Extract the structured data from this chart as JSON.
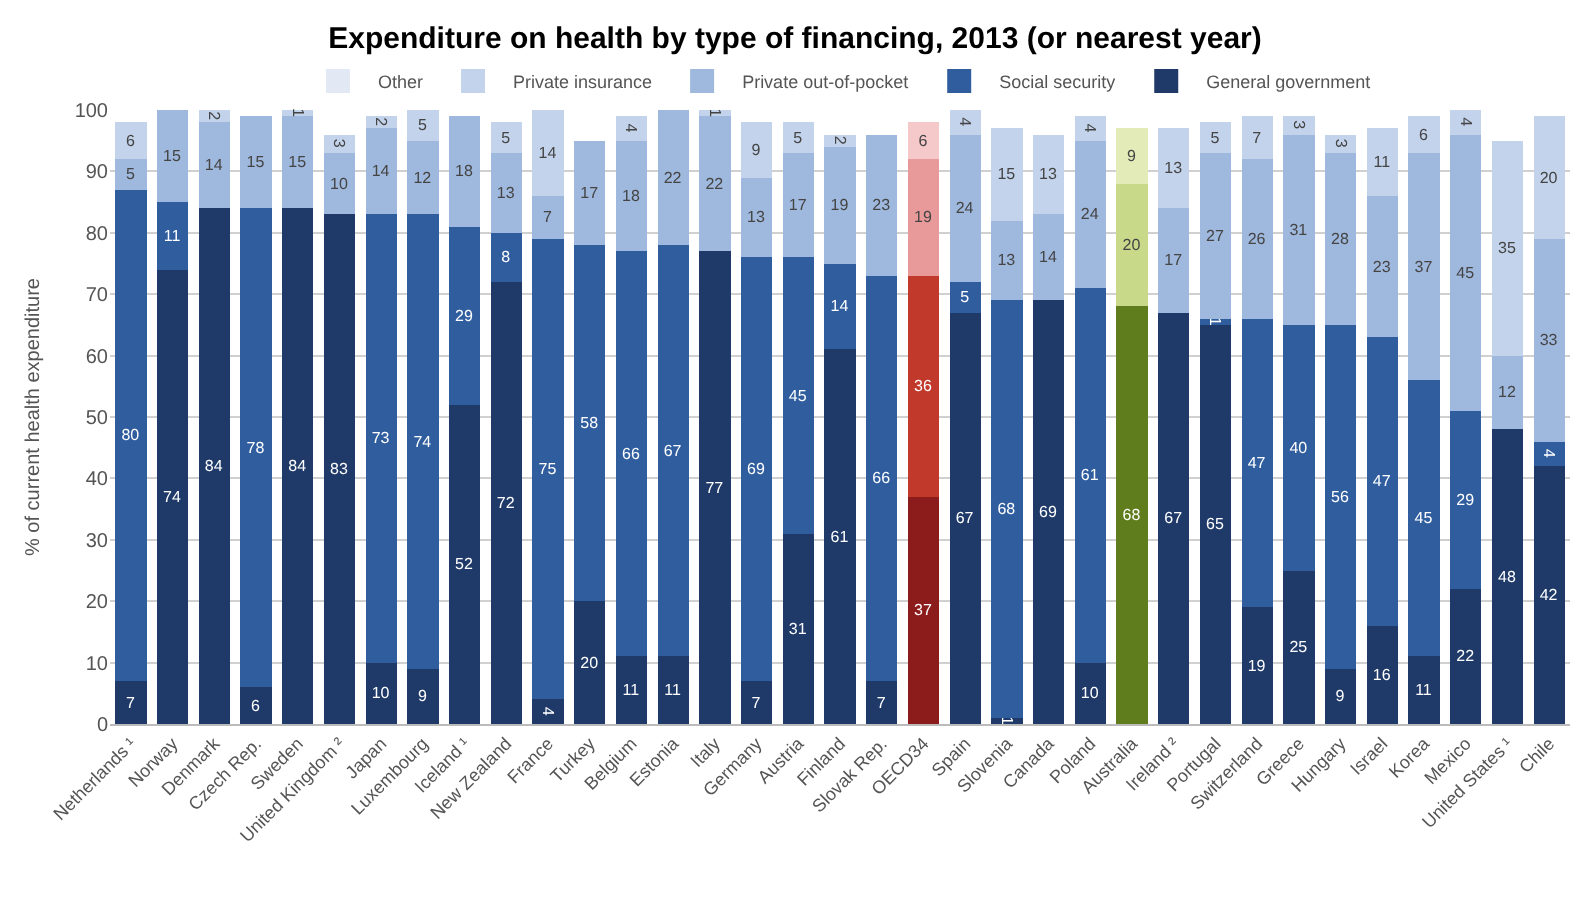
{
  "chart_data": {
    "type": "bar",
    "stacked": true,
    "title": "Expenditure on health by type of financing, 2013 (or nearest year)",
    "ylabel": "% of current health expenditure",
    "categories": [
      "Netherlands ¹",
      "Norway",
      "Denmark",
      "Czech Rep.",
      "Sweden",
      "United Kingdom ²",
      "Japan",
      "Luxembourg",
      "Iceland ¹",
      "New Zealand",
      "France",
      "Turkey",
      "Belgium",
      "Estonia",
      "Italy",
      "Germany",
      "Austria",
      "Finland",
      "Slovak Rep.",
      "OECD34",
      "Spain",
      "Slovenia",
      "Canada",
      "Poland",
      "Australia",
      "Ireland ²",
      "Portugal",
      "Switzerland",
      "Greece",
      "Hungary",
      "Israel",
      "Korea",
      "Mexico",
      "United States ¹",
      "Chile"
    ],
    "series": [
      {
        "name": "General government",
        "color": "#1f3a68",
        "colors": [
          "#1f3a68",
          "#1f3a68",
          "#1f3a68",
          "#1f3a68",
          "#1f3a68",
          "#1f3a68",
          "#1f3a68",
          "#1f3a68",
          "#1f3a68",
          "#1f3a68",
          "#1f3a68",
          "#1f3a68",
          "#1f3a68",
          "#1f3a68",
          "#1f3a68",
          "#1f3a68",
          "#1f3a68",
          "#1f3a68",
          "#1f3a68",
          "#8c1c1c",
          "#1f3a68",
          "#1f3a68",
          "#1f3a68",
          "#1f3a68",
          "#5f7d1c",
          "#1f3a68",
          "#1f3a68",
          "#1f3a68",
          "#1f3a68",
          "#1f3a68",
          "#1f3a68",
          "#1f3a68",
          "#1f3a68",
          "#1f3a68",
          "#1f3a68"
        ],
        "values": [
          7,
          74,
          84,
          6,
          84,
          83,
          10,
          9,
          52,
          72,
          4,
          20,
          11,
          11,
          77,
          7,
          31,
          61,
          7,
          37,
          67,
          1,
          69,
          10,
          68,
          67,
          65,
          19,
          25,
          9,
          16,
          11,
          22,
          48,
          42
        ]
      },
      {
        "name": "Social security",
        "color": "#2f5d9e",
        "colors": [
          "#2f5d9e",
          "#2f5d9e",
          "#2f5d9e",
          "#2f5d9e",
          "#2f5d9e",
          "#2f5d9e",
          "#2f5d9e",
          "#2f5d9e",
          "#2f5d9e",
          "#2f5d9e",
          "#2f5d9e",
          "#2f5d9e",
          "#2f5d9e",
          "#2f5d9e",
          "#2f5d9e",
          "#2f5d9e",
          "#2f5d9e",
          "#2f5d9e",
          "#2f5d9e",
          "#c0392b",
          "#2f5d9e",
          "#2f5d9e",
          "#2f5d9e",
          "#2f5d9e",
          "#8aa83a",
          "#2f5d9e",
          "#2f5d9e",
          "#2f5d9e",
          "#2f5d9e",
          "#2f5d9e",
          "#2f5d9e",
          "#2f5d9e",
          "#2f5d9e",
          "#2f5d9e",
          "#2f5d9e"
        ],
        "values": [
          80,
          11,
          null,
          78,
          null,
          null,
          73,
          74,
          29,
          8,
          75,
          58,
          66,
          67,
          null,
          69,
          45,
          14,
          66,
          36,
          5,
          68,
          null,
          61,
          null,
          null,
          1,
          47,
          40,
          56,
          47,
          45,
          29,
          null,
          4
        ]
      },
      {
        "name": "Private out-of-pocket",
        "color": "#9fb8dd",
        "colors": [
          "#9fb8dd",
          "#9fb8dd",
          "#9fb8dd",
          "#9fb8dd",
          "#9fb8dd",
          "#9fb8dd",
          "#9fb8dd",
          "#9fb8dd",
          "#9fb8dd",
          "#9fb8dd",
          "#9fb8dd",
          "#9fb8dd",
          "#9fb8dd",
          "#9fb8dd",
          "#9fb8dd",
          "#9fb8dd",
          "#9fb8dd",
          "#9fb8dd",
          "#9fb8dd",
          "#e89a9a",
          "#9fb8dd",
          "#9fb8dd",
          "#9fb8dd",
          "#9fb8dd",
          "#c8d98a",
          "#9fb8dd",
          "#9fb8dd",
          "#9fb8dd",
          "#9fb8dd",
          "#9fb8dd",
          "#9fb8dd",
          "#9fb8dd",
          "#9fb8dd",
          "#9fb8dd",
          "#9fb8dd"
        ],
        "values": [
          5,
          15,
          14,
          15,
          15,
          10,
          14,
          12,
          18,
          13,
          7,
          17,
          18,
          22,
          22,
          13,
          17,
          19,
          23,
          19,
          24,
          13,
          14,
          24,
          20,
          17,
          27,
          26,
          31,
          28,
          23,
          37,
          45,
          12,
          33
        ]
      },
      {
        "name": "Private insurance",
        "color": "#c3d3eb",
        "colors": [
          "#c3d3eb",
          "#c3d3eb",
          "#c3d3eb",
          "#c3d3eb",
          "#c3d3eb",
          "#c3d3eb",
          "#c3d3eb",
          "#c3d3eb",
          "#c3d3eb",
          "#c3d3eb",
          "#c3d3eb",
          "#c3d3eb",
          "#c3d3eb",
          "#c3d3eb",
          "#c3d3eb",
          "#c3d3eb",
          "#c3d3eb",
          "#c3d3eb",
          "#c3d3eb",
          "#f5c9c9",
          "#c3d3eb",
          "#c3d3eb",
          "#c3d3eb",
          "#c3d3eb",
          "#e3ecb8",
          "#c3d3eb",
          "#c3d3eb",
          "#c3d3eb",
          "#c3d3eb",
          "#c3d3eb",
          "#c3d3eb",
          "#c3d3eb",
          "#c3d3eb",
          "#c3d3eb",
          "#c3d3eb"
        ],
        "values": [
          6,
          null,
          2,
          null,
          1,
          3,
          2,
          5,
          null,
          5,
          14,
          null,
          4,
          null,
          1,
          9,
          5,
          2,
          null,
          6,
          4,
          15,
          13,
          4,
          9,
          13,
          5,
          7,
          3,
          3,
          11,
          6,
          4,
          35,
          20
        ]
      },
      {
        "name": "Other",
        "color": "#e2e9f4",
        "values": [
          null,
          null,
          null,
          null,
          null,
          null,
          null,
          null,
          null,
          null,
          null,
          null,
          null,
          null,
          null,
          null,
          null,
          null,
          null,
          null,
          null,
          null,
          null,
          null,
          null,
          null,
          null,
          null,
          null,
          null,
          null,
          null,
          null,
          null,
          null
        ]
      }
    ],
    "ylim": [
      0,
      100
    ],
    "yticks": [
      0,
      10,
      20,
      30,
      40,
      50,
      60,
      70,
      80,
      90,
      100
    ],
    "grid": "y",
    "legend": "top",
    "data_labels": true
  }
}
